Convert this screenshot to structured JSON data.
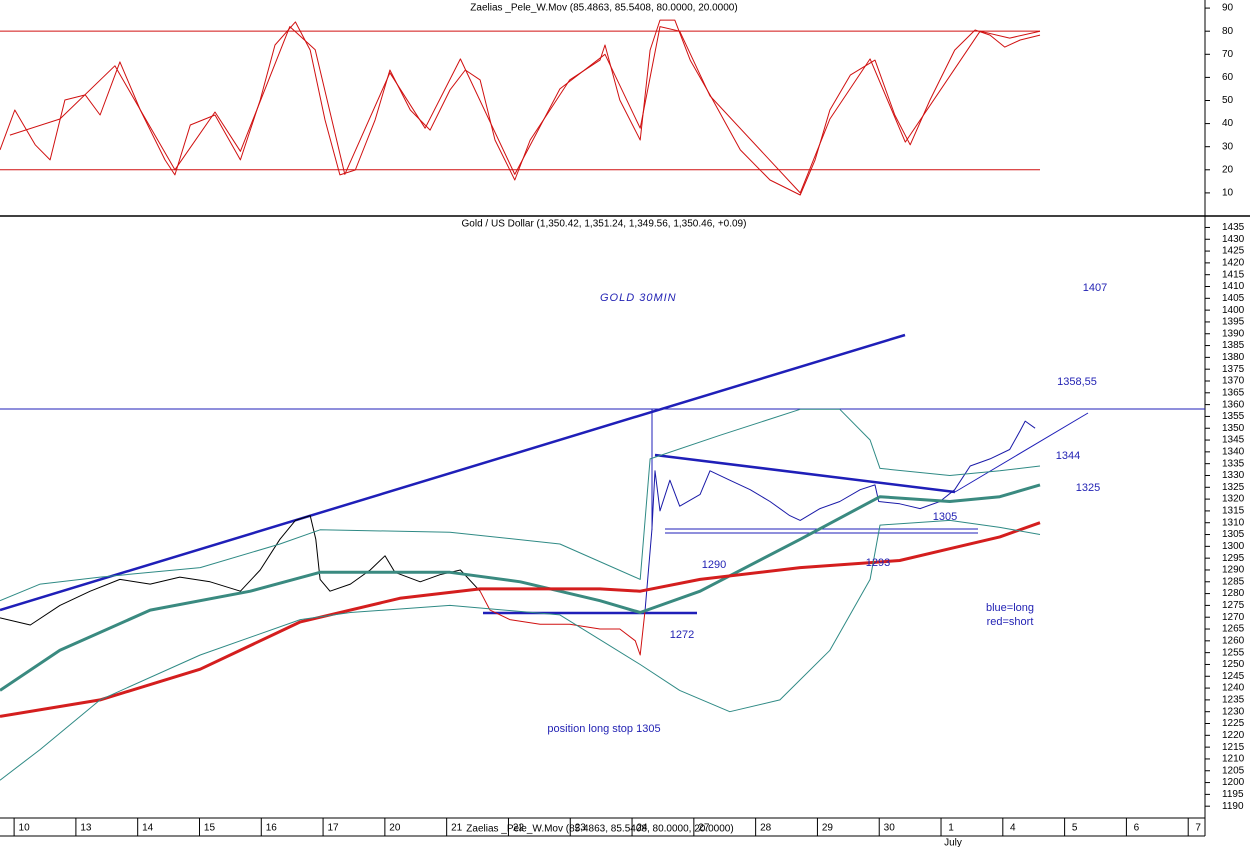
{
  "chart_data": [
    {
      "type": "line",
      "title": "Zaelias _Pele_W.Mov (85.4863, 85.5408, 80.0000, 20.0000)",
      "ylim": [
        0,
        93.5
      ],
      "yticks": [
        10,
        20,
        30,
        40,
        50,
        60,
        70,
        80,
        90
      ],
      "xlim": [
        -0.39,
        19.11
      ],
      "levels": [
        80,
        20
      ],
      "levels_color": "#d01010",
      "series": [
        {
          "color": "#d01010",
          "x": [
            -0.39,
            -0.15,
            0.18,
            0.42,
            0.66,
            0.99,
            1.23,
            1.55,
            1.88,
            2.28,
            2.44,
            2.69,
            3.09,
            3.5,
            3.82,
            4.06,
            4.39,
            4.63,
            4.87,
            5.11,
            5.36,
            5.68,
            5.92,
            6.25,
            6.57,
            6.89,
            7.14,
            7.38,
            7.62,
            7.94,
            8.19,
            8.51,
            8.83,
            9.32,
            9.4,
            9.64,
            9.97,
            10.13,
            10.29,
            10.53,
            10.78,
            11.1,
            11.59,
            12.07,
            12.56,
            12.8,
            13.04,
            13.37,
            13.77,
            14.09,
            14.34,
            14.66,
            15.06,
            15.39,
            15.63,
            15.87,
            16.12,
            16.44
          ],
          "values": [
            28.6,
            45.9,
            30.8,
            24.3,
            50.2,
            52.4,
            43.7,
            66.7,
            45.9,
            24.3,
            17.8,
            39.4,
            43.7,
            24.3,
            50.2,
            74,
            84,
            71.8,
            41.6,
            17.8,
            19.9,
            41.6,
            63.2,
            45.9,
            37.2,
            54.5,
            63.2,
            58.9,
            32.9,
            15.6,
            32.9,
            45.9,
            58.9,
            67.5,
            74,
            50.2,
            32.9,
            71.8,
            84.8,
            84.8,
            67.5,
            52.4,
            28.6,
            15.6,
            9.1,
            24.3,
            45.9,
            61,
            67.5,
            43.7,
            30.8,
            50.2,
            71.8,
            80.5,
            78.3,
            73.1,
            76.2,
            78.3
          ]
        },
        {
          "color": "#d01010",
          "x": [
            -0.23,
            0.58,
            1.47,
            2.44,
            3.09,
            3.5,
            4.3,
            4.71,
            5.19,
            5.92,
            6.49,
            7.06,
            7.94,
            8.67,
            9.4,
            9.97,
            10.29,
            10.61,
            11.1,
            12.56,
            13.04,
            13.69,
            14.26,
            15.47,
            15.95,
            16.44
          ],
          "values": [
            35,
            42,
            65,
            20,
            45,
            28,
            82,
            72,
            18,
            62,
            38,
            68,
            18,
            55,
            70,
            38,
            82,
            80,
            52,
            10,
            42,
            68,
            32,
            80,
            77,
            80
          ]
        }
      ]
    },
    {
      "type": "line",
      "title": "Gold / US Dollar (1,350.42, 1,351.24, 1,349.56, 1,350.46, +0.09)",
      "ylim": [
        1185,
        1439
      ],
      "yticks": [
        1190,
        1195,
        1200,
        1205,
        1210,
        1215,
        1220,
        1225,
        1230,
        1235,
        1240,
        1245,
        1250,
        1255,
        1260,
        1265,
        1270,
        1275,
        1280,
        1285,
        1290,
        1295,
        1300,
        1305,
        1310,
        1315,
        1320,
        1325,
        1330,
        1335,
        1340,
        1345,
        1350,
        1355,
        1360,
        1365,
        1370,
        1375,
        1380,
        1385,
        1390,
        1395,
        1400,
        1405,
        1410,
        1415,
        1420,
        1425,
        1430,
        1435
      ],
      "xlim": [
        -0.39,
        19.11
      ],
      "xticks": [
        {
          "value": 0,
          "label": "10"
        },
        {
          "value": 1,
          "label": "13"
        },
        {
          "value": 2,
          "label": "14"
        },
        {
          "value": 3,
          "label": "15"
        },
        {
          "value": 4,
          "label": "16"
        },
        {
          "value": 5,
          "label": "17"
        },
        {
          "value": 6,
          "label": "20"
        },
        {
          "value": 7,
          "label": "21"
        },
        {
          "value": 8,
          "label": "22"
        },
        {
          "value": 9,
          "label": "23"
        },
        {
          "value": 10,
          "label": "24"
        },
        {
          "value": 11,
          "label": "27"
        },
        {
          "value": 12,
          "label": "28"
        },
        {
          "value": 13,
          "label": "29"
        },
        {
          "value": 14,
          "label": "30"
        },
        {
          "value": 15,
          "label": "1"
        },
        {
          "value": 16,
          "label": "4"
        },
        {
          "value": 17,
          "label": "5"
        },
        {
          "value": 18,
          "label": "6"
        },
        {
          "value": 19,
          "label": "7"
        }
      ],
      "month_label": "July",
      "series": [
        {
          "color": "#000000",
          "width": 1,
          "x": [
            -0.39,
            0.1,
            0.58,
            1.07,
            1.55,
            2.04,
            2.52,
            3.01,
            3.5,
            3.82,
            4.14,
            4.39,
            4.63,
            4.72,
            4.79,
            4.95,
            5.28,
            5.6,
            5.84,
            6.0,
            6.41,
            6.73,
            7.06,
            7.38
          ],
          "values": [
            1269.7,
            1266.7,
            1275,
            1281,
            1286,
            1284,
            1287,
            1285,
            1281,
            1290,
            1303,
            1311,
            1313,
            1303,
            1286,
            1281,
            1284,
            1290,
            1296,
            1289,
            1285,
            1288,
            1290,
            1281
          ]
        },
        {
          "color": "#d01010",
          "width": 1,
          "x": [
            7.38,
            7.54,
            7.86,
            8.35,
            8.83,
            9.32,
            9.64,
            9.89,
            9.97,
            10.05
          ],
          "values": [
            1281,
            1273,
            1269,
            1267,
            1267,
            1265,
            1265,
            1260,
            1254,
            1273
          ]
        },
        {
          "color": "#1a1aa8",
          "width": 1,
          "x": [
            10.05,
            10.16,
            10.21,
            10.29,
            10.45,
            10.61,
            10.94,
            11.1,
            11.42,
            11.75,
            12.07,
            12.39,
            12.56,
            12.88,
            13.2,
            13.53,
            13.77,
            13.83,
            14.17,
            14.5,
            14.82,
            15.06,
            15.31,
            15.63,
            15.95,
            16.12,
            16.2,
            16.36
          ],
          "values": [
            1273,
            1307,
            1332,
            1315,
            1328,
            1317,
            1322,
            1332,
            1328,
            1324,
            1319,
            1313,
            1311,
            1316,
            1319,
            1324,
            1326,
            1319,
            1318,
            1316,
            1319,
            1324,
            1334,
            1337,
            1341,
            1349,
            1353,
            1350
          ]
        },
        {
          "color": "#3a8a80",
          "width": 3,
          "x": [
            -0.39,
            0.58,
            2.04,
            3.66,
            4.79,
            6.89,
            8.03,
            9.32,
            9.97,
            10.94,
            12.56,
            13.85,
            14.98,
            15.79,
            16.44
          ],
          "values": [
            1239,
            1256,
            1273,
            1281,
            1289,
            1289,
            1285,
            1277,
            1272,
            1281,
            1303,
            1321,
            1319,
            1321,
            1326
          ]
        },
        {
          "color": "#d41e1e",
          "width": 3,
          "x": [
            -0.39,
            1.23,
            2.85,
            4.47,
            6.08,
            7.38,
            9.32,
            9.97,
            10.94,
            12.56,
            14.17,
            14.98,
            15.79,
            16.44
          ],
          "values": [
            1228,
            1235,
            1248,
            1268,
            1278,
            1282,
            1282,
            1281,
            1286,
            1291,
            1294,
            1299,
            1304,
            1310
          ]
        },
        {
          "color": "#2f8a85",
          "width": 1,
          "x": [
            -0.39,
            0.26,
            1.23,
            2.85,
            4.14,
            4.79,
            6.89,
            8.67,
            9.97,
            10.13,
            11.26,
            12.56,
            13.2,
            13.69,
            13.85,
            14.98,
            15.79,
            16.44
          ],
          "values": [
            1277,
            1284,
            1287,
            1291,
            1301,
            1307,
            1306,
            1301,
            1286,
            1337,
            1347,
            1358,
            1358,
            1345,
            1333,
            1330,
            1332,
            1334
          ]
        },
        {
          "color": "#2f8a85",
          "width": 1,
          "x": [
            -0.39,
            0.26,
            1.23,
            2.85,
            4.47,
            5.28,
            6.89,
            8.67,
            9.97,
            10.61,
            11.42,
            12.23,
            13.04,
            13.69,
            13.85,
            14.98,
            15.79,
            16.44
          ],
          "values": [
            1201,
            1214,
            1235,
            1254,
            1269,
            1272,
            1275,
            1271,
            1250,
            1239,
            1230,
            1235,
            1256,
            1286,
            1309,
            1311,
            1308,
            1305
          ]
        }
      ],
      "annotations": [
        "GOLD 30MIN",
        "1407",
        "1358,55",
        "1344",
        "1325",
        "1305",
        "1290",
        "1293",
        "1272",
        "blue=long",
        "red=short",
        "position long stop 1305"
      ]
    }
  ]
}
